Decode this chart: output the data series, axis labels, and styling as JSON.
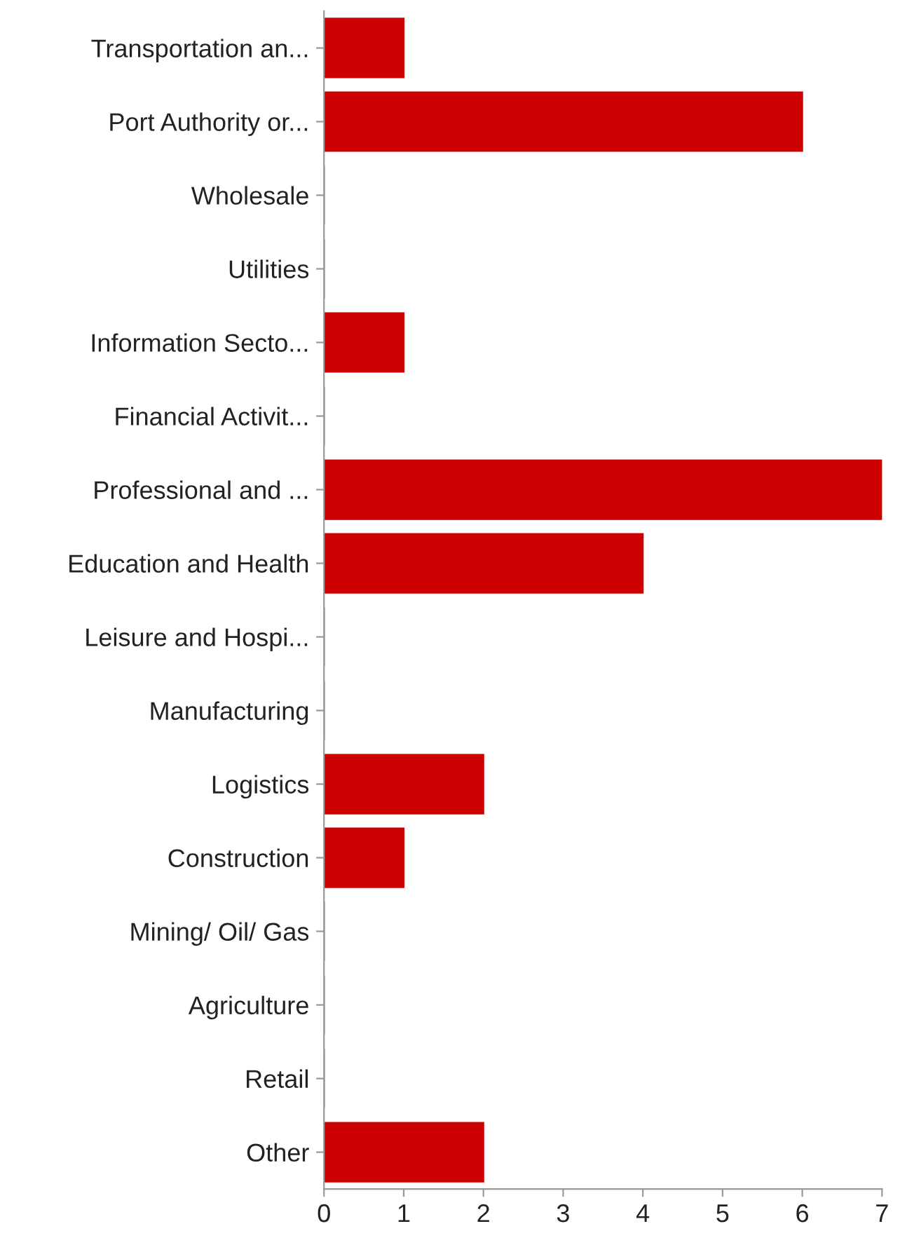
{
  "chart_data": {
    "type": "bar",
    "orientation": "horizontal",
    "categories": [
      "Transportation an...",
      "Port Authority or...",
      "Wholesale",
      "Utilities",
      "Information Secto...",
      "Financial Activit...",
      "Professional and ...",
      "Education and Health",
      "Leisure and Hospi...",
      "Manufacturing",
      "Logistics",
      "Construction",
      "Mining/ Oil/ Gas",
      "Agriculture",
      "Retail",
      "Other"
    ],
    "values": [
      1,
      6,
      0,
      0,
      1,
      0,
      7,
      4,
      0,
      0,
      2,
      1,
      0,
      0,
      0,
      2
    ],
    "color": "#cc0000",
    "xlim": [
      0,
      7
    ],
    "xticks": [
      0,
      1,
      2,
      3,
      4,
      5,
      6,
      7
    ],
    "grid": false
  }
}
